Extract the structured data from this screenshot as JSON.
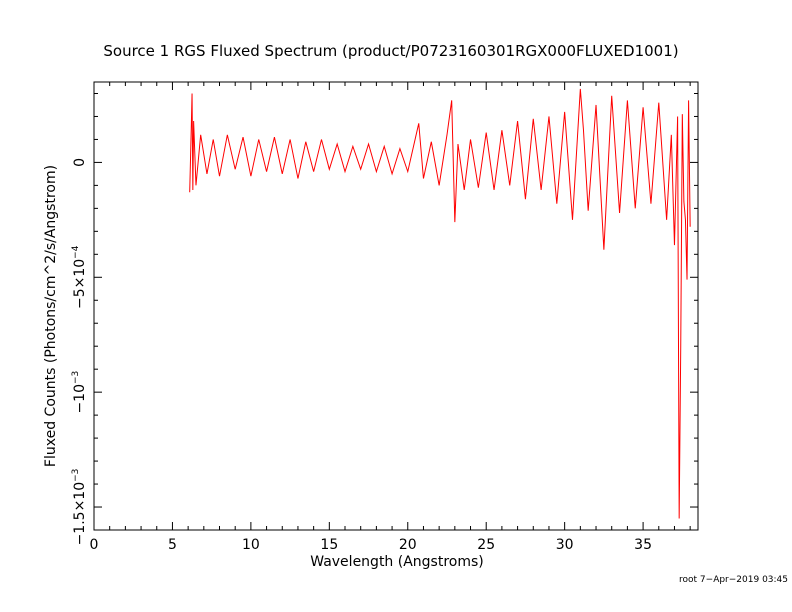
{
  "chart_data": {
    "type": "line",
    "title": "Source 1 RGS Fluxed Spectrum (product/P0723160301RGX000FLUXED1001)",
    "xlabel": "Wavelength (Angstroms)",
    "ylabel": "Fluxed Counts (Photons/cm^2/s/Angstrom)",
    "xlim": [
      0,
      38.5
    ],
    "ylim": [
      -0.0016,
      0.00035
    ],
    "grid": false,
    "x_ticks": [
      {
        "value": 0,
        "label": "0"
      },
      {
        "value": 5,
        "label": "5"
      },
      {
        "value": 10,
        "label": "10"
      },
      {
        "value": 15,
        "label": "15"
      },
      {
        "value": 20,
        "label": "20"
      },
      {
        "value": 25,
        "label": "25"
      },
      {
        "value": 30,
        "label": "30"
      },
      {
        "value": 35,
        "label": "35"
      }
    ],
    "y_ticks": [
      {
        "value": 0,
        "label": "0",
        "base": "0",
        "exp": ""
      },
      {
        "value": -0.0005,
        "label": "−5×10⁻⁴",
        "base": "−5×10",
        "exp": "−4"
      },
      {
        "value": -0.001,
        "label": "−10⁻³",
        "base": "−10",
        "exp": "−3"
      },
      {
        "value": -0.0015,
        "label": "−1.5×10⁻³",
        "base": "−1.5×10",
        "exp": "−3"
      }
    ],
    "series": [
      {
        "color": "#ff0000",
        "x": [
          6.1,
          6.2,
          6.25,
          6.3,
          6.35,
          6.5,
          6.8,
          7.2,
          7.6,
          8.0,
          8.5,
          9.0,
          9.5,
          10.0,
          10.5,
          11.0,
          11.5,
          12.0,
          12.5,
          13.0,
          13.5,
          14.0,
          14.5,
          15.0,
          15.5,
          16.0,
          16.5,
          17.0,
          17.5,
          18.0,
          18.5,
          19.0,
          19.5,
          20.0,
          20.5,
          20.7,
          21.0,
          21.5,
          22.0,
          22.5,
          22.8,
          23.0,
          23.2,
          23.6,
          24.0,
          24.5,
          25.0,
          25.5,
          26.0,
          26.5,
          27.0,
          27.5,
          28.0,
          28.5,
          29.0,
          29.5,
          30.0,
          30.5,
          31.0,
          31.2,
          31.5,
          32.0,
          32.5,
          33.0,
          33.5,
          34.0,
          34.5,
          35.0,
          35.5,
          36.0,
          36.5,
          36.8,
          37.0,
          37.2,
          37.3,
          37.4,
          37.5,
          37.6,
          37.7,
          37.8,
          37.9,
          38.0
        ],
        "y": [
          -0.00013,
          0.00015,
          0.0003,
          -0.00012,
          0.00018,
          -0.0001,
          0.00012,
          -5e-05,
          0.0001,
          -6e-05,
          0.00012,
          -3e-05,
          0.00011,
          -6e-05,
          0.0001,
          -4e-05,
          0.00011,
          -5e-05,
          0.0001,
          -7e-05,
          9e-05,
          -4e-05,
          0.0001,
          -3e-05,
          8e-05,
          -4e-05,
          7e-05,
          -3e-05,
          8e-05,
          -4e-05,
          7e-05,
          -5e-05,
          6e-05,
          -4e-05,
          0.00011,
          0.00017,
          -7e-05,
          9e-05,
          -0.0001,
          0.00012,
          0.00027,
          -0.00026,
          8e-05,
          -0.00012,
          0.0001,
          -0.00011,
          0.00013,
          -0.00012,
          0.00014,
          -0.0001,
          0.00018,
          -0.00016,
          0.00019,
          -0.00012,
          0.0002,
          -0.00018,
          0.00022,
          -0.00025,
          0.00032,
          0.00014,
          -0.00021,
          0.00025,
          -0.00038,
          0.00029,
          -0.00022,
          0.00027,
          -0.0002,
          0.00024,
          -0.00018,
          0.00026,
          -0.00025,
          0.00012,
          -0.00036,
          0.0002,
          -0.00155,
          -0.0008,
          0.00021,
          -0.00017,
          -0.00025,
          -0.00051,
          0.00027,
          -0.00028
        ]
      }
    ]
  },
  "footer": "root  7−Apr−2019 03:45"
}
